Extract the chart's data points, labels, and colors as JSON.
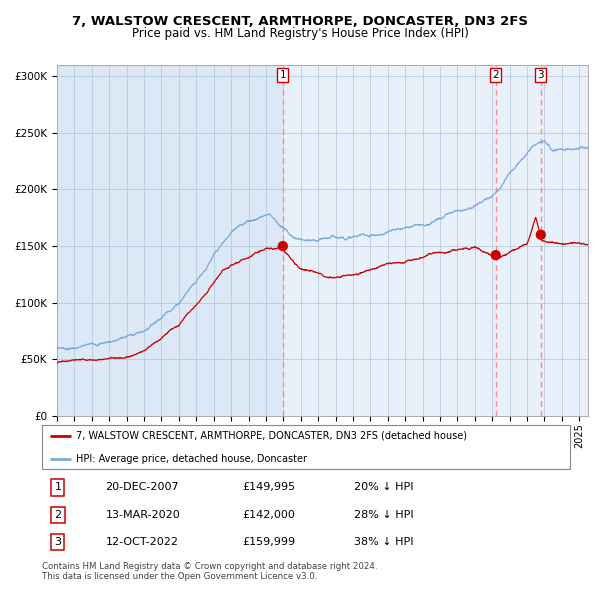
{
  "title": "7, WALSTOW CRESCENT, ARMTHORPE, DONCASTER, DN3 2FS",
  "subtitle": "Price paid vs. HM Land Registry's House Price Index (HPI)",
  "legend_red": "7, WALSTOW CRESCENT, ARMTHORPE, DONCASTER, DN3 2FS (detached house)",
  "legend_blue": "HPI: Average price, detached house, Doncaster",
  "purchases": [
    {
      "label": "1",
      "date": "20-DEC-2007",
      "price": 149995,
      "pct": "20%",
      "x_year": 2007.97
    },
    {
      "label": "2",
      "date": "13-MAR-2020",
      "price": 142000,
      "pct": "28%",
      "x_year": 2020.2
    },
    {
      "label": "3",
      "date": "12-OCT-2022",
      "price": 159999,
      "pct": "38%",
      "x_year": 2022.79
    }
  ],
  "footer": "Contains HM Land Registry data © Crown copyright and database right 2024.\nThis data is licensed under the Open Government Licence v3.0.",
  "ylim": [
    0,
    310000
  ],
  "xlim_start": 1995.0,
  "xlim_end": 2025.5,
  "plot_bg_color": "#dce8f5",
  "grid_color": "#b0c4d8",
  "red_line_color": "#cc0000",
  "blue_line_color": "#7aaadd",
  "dashed_line_color": "#ff8888",
  "shaded_region_color": "#e8f0fa",
  "title_fontsize": 9.5,
  "subtitle_fontsize": 8.5
}
